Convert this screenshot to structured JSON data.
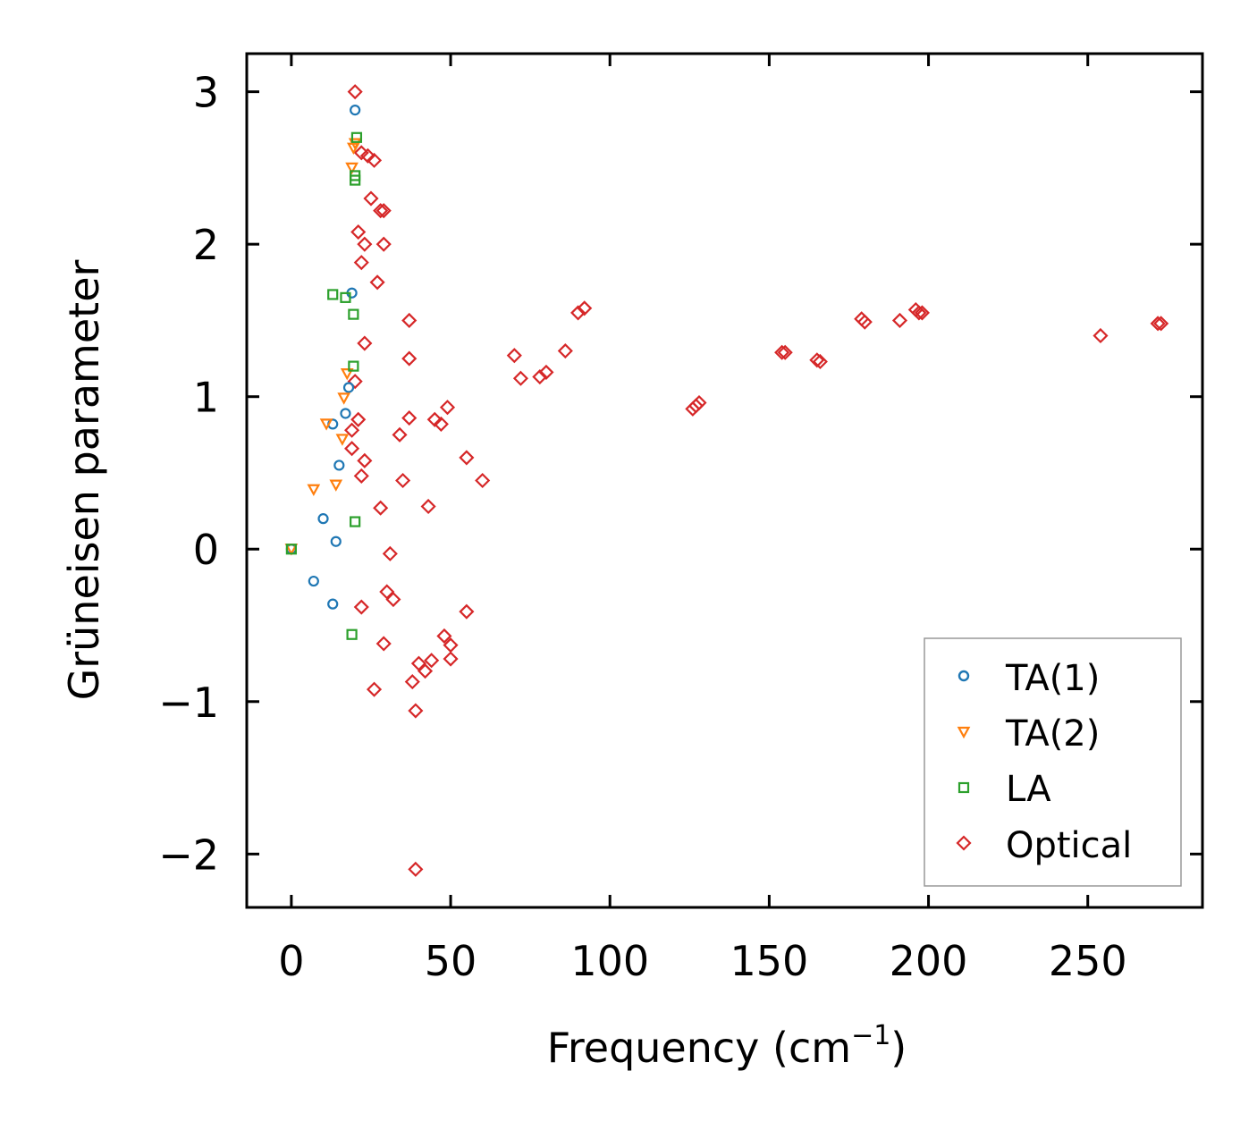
{
  "chart_data": {
    "type": "scatter",
    "xlabel": "Frequency (cm",
    "xlabel_sup": "−1",
    "xlabel_end": ")",
    "ylabel": "Grüneisen parameter",
    "xlim": [
      -14,
      286
    ],
    "ylim": [
      -2.35,
      3.25
    ],
    "xticks": [
      0,
      50,
      100,
      150,
      200,
      250
    ],
    "xtick_labels": [
      "0",
      "50",
      "100",
      "150",
      "200",
      "250"
    ],
    "yticks": [
      3,
      2,
      1,
      0,
      -1,
      -2
    ],
    "ytick_labels": [
      "3",
      "2",
      "1",
      "0",
      "−1",
      "−2"
    ],
    "legend_position": "lower-right",
    "series": [
      {
        "name": "TA(1)",
        "marker": "circle",
        "color": "#1f77b4",
        "points": [
          [
            0,
            0
          ],
          [
            7,
            -0.21
          ],
          [
            10,
            0.2
          ],
          [
            13,
            -0.36
          ],
          [
            13,
            0.82
          ],
          [
            14,
            0.05
          ],
          [
            15,
            0.55
          ],
          [
            17,
            0.89
          ],
          [
            18,
            1.06
          ],
          [
            19,
            1.68
          ],
          [
            20,
            2.88
          ]
        ]
      },
      {
        "name": "TA(2)",
        "marker": "triangle-down",
        "color": "#ff7f0e",
        "points": [
          [
            0,
            0
          ],
          [
            7,
            0.39
          ],
          [
            11,
            0.82
          ],
          [
            14,
            0.42
          ],
          [
            16,
            0.72
          ],
          [
            16.5,
            0.99
          ],
          [
            17.5,
            1.15
          ],
          [
            19,
            2.5
          ],
          [
            19.5,
            2.63
          ],
          [
            20,
            2.66
          ]
        ]
      },
      {
        "name": "LA",
        "marker": "square",
        "color": "#2ca02c",
        "points": [
          [
            0,
            0
          ],
          [
            13,
            1.67
          ],
          [
            17,
            1.65
          ],
          [
            19,
            -0.56
          ],
          [
            19.5,
            1.2
          ],
          [
            19.5,
            1.54
          ],
          [
            20,
            0.18
          ],
          [
            20,
            2.42
          ],
          [
            20,
            2.45
          ],
          [
            20.5,
            2.7
          ]
        ]
      },
      {
        "name": "Optical",
        "marker": "diamond",
        "color": "#d62728",
        "points": [
          [
            20,
            3.0
          ],
          [
            22,
            2.6
          ],
          [
            24,
            2.58
          ],
          [
            26,
            2.55
          ],
          [
            25,
            2.3
          ],
          [
            28,
            2.22
          ],
          [
            29,
            2.22
          ],
          [
            21,
            2.08
          ],
          [
            23,
            2.0
          ],
          [
            29,
            2.0
          ],
          [
            22,
            1.88
          ],
          [
            27,
            1.75
          ],
          [
            37,
            1.5
          ],
          [
            23,
            1.35
          ],
          [
            37,
            1.25
          ],
          [
            20,
            1.1
          ],
          [
            21,
            0.85
          ],
          [
            19,
            0.78
          ],
          [
            19,
            0.66
          ],
          [
            22,
            0.48
          ],
          [
            23,
            0.58
          ],
          [
            28,
            0.27
          ],
          [
            31,
            -0.03
          ],
          [
            32,
            -0.33
          ],
          [
            30,
            -0.28
          ],
          [
            22,
            -0.38
          ],
          [
            29,
            -0.62
          ],
          [
            26,
            -0.92
          ],
          [
            38,
            -0.87
          ],
          [
            39,
            -1.06
          ],
          [
            39,
            -2.1
          ],
          [
            40,
            -0.75
          ],
          [
            42,
            -0.8
          ],
          [
            44,
            -0.73
          ],
          [
            48,
            -0.57
          ],
          [
            50,
            -0.63
          ],
          [
            50,
            -0.72
          ],
          [
            55,
            -0.41
          ],
          [
            49,
            0.93
          ],
          [
            47,
            0.82
          ],
          [
            45,
            0.85
          ],
          [
            43,
            0.28
          ],
          [
            37,
            0.86
          ],
          [
            34,
            0.75
          ],
          [
            35,
            0.45
          ],
          [
            55,
            0.6
          ],
          [
            60,
            0.45
          ],
          [
            70,
            1.27
          ],
          [
            72,
            1.12
          ],
          [
            78,
            1.13
          ],
          [
            80,
            1.16
          ],
          [
            86,
            1.3
          ],
          [
            90,
            1.55
          ],
          [
            92,
            1.58
          ],
          [
            126,
            0.92
          ],
          [
            127,
            0.94
          ],
          [
            128,
            0.96
          ],
          [
            154,
            1.29
          ],
          [
            155,
            1.29
          ],
          [
            165,
            1.24
          ],
          [
            166,
            1.23
          ],
          [
            179,
            1.51
          ],
          [
            180,
            1.49
          ],
          [
            191,
            1.5
          ],
          [
            196,
            1.57
          ],
          [
            197,
            1.55
          ],
          [
            198,
            1.55
          ],
          [
            254,
            1.4
          ],
          [
            272,
            1.48
          ],
          [
            273,
            1.48
          ]
        ]
      }
    ]
  }
}
